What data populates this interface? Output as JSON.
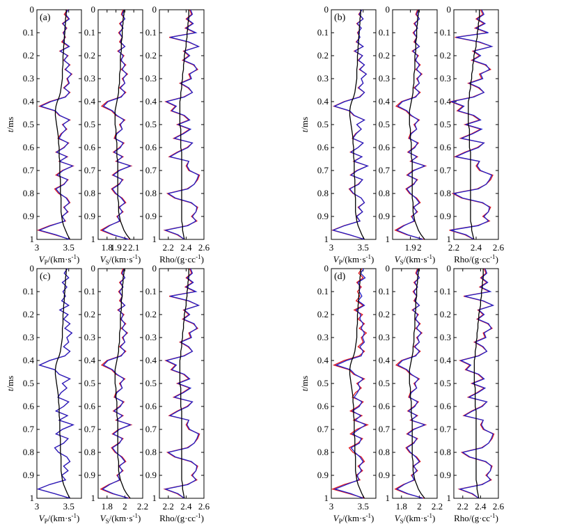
{
  "chart_data": {
    "type": "line",
    "series_colors": {
      "true": "#e0191e",
      "inverted": "#1f1fc8",
      "initial": "#000000"
    },
    "groups": [
      {
        "label": "(a)",
        "ylabel": [
          "t",
          "/ms"
        ],
        "panels": [
          {
            "key": "vp",
            "xlabel_main": "V",
            "xlabel_sub": "P",
            "xlabel_unit": "/(km·s",
            "xlabel_sup": "-1",
            "xlabel_close": ")",
            "xlim": [
              3.0,
              3.7
            ],
            "xticks": [
              3,
              3.5
            ],
            "xtick_labels": [
              "3",
              "3.5"
            ]
          },
          {
            "key": "vs",
            "xlabel_main": "V",
            "xlabel_sub": "S",
            "xlabel_unit": "/(km·s",
            "xlabel_sup": "-1",
            "xlabel_close": ")",
            "xlim": [
              1.7,
              2.2
            ],
            "xticks": [
              1.8,
              1.9,
              2.0,
              2.1
            ],
            "xtick_labels": [
              "1.8",
              "1.9",
              "2",
              "2.1"
            ]
          },
          {
            "key": "rho",
            "xlabel_main": "Rho/(g·cc",
            "xlabel_sub": "",
            "xlabel_unit": "",
            "xlabel_sup": "-1",
            "xlabel_close": ")",
            "xlim": [
              2.1,
              2.6
            ],
            "xticks": [
              2.2,
              2.4,
              2.6
            ],
            "xtick_labels": [
              "2.2",
              "2.4",
              "2.6"
            ]
          }
        ]
      },
      {
        "label": "(b)",
        "ylabel": [
          "t",
          "/ms"
        ],
        "panels": [
          {
            "key": "vp",
            "xlabel_main": "V",
            "xlabel_sub": "P",
            "xlabel_unit": "/(km·s",
            "xlabel_sup": "-1",
            "xlabel_close": ")",
            "xlim": [
              3.0,
              3.7
            ],
            "xticks": [
              3,
              3.5
            ],
            "xtick_labels": [
              "3",
              "3.5"
            ]
          },
          {
            "key": "vs",
            "xlabel_main": "V",
            "xlabel_sub": "S",
            "xlabel_unit": "/(km·s",
            "xlabel_sup": "-1",
            "xlabel_close": ")",
            "xlim": [
              1.7,
              2.2
            ],
            "xticks": [
              1.9,
              2.0
            ],
            "xtick_labels": [
              "1.9",
              "2"
            ]
          },
          {
            "key": "rho",
            "xlabel_main": "Rho/(g·cc",
            "xlabel_sub": "",
            "xlabel_unit": "",
            "xlabel_sup": "-1",
            "xlabel_close": ")",
            "xlim": [
              2.2,
              2.6
            ],
            "xticks": [
              2.2,
              2.4,
              2.6
            ],
            "xtick_labels": [
              "2.2",
              "2.4",
              "2.6"
            ]
          }
        ]
      },
      {
        "label": "(c)",
        "ylabel": [
          "t",
          "/ms"
        ],
        "panels": [
          {
            "key": "vp",
            "xlabel_main": "V",
            "xlabel_sub": "P",
            "xlabel_unit": "/(km·s",
            "xlabel_sup": "-1",
            "xlabel_close": ")",
            "xlim": [
              3.0,
              3.7
            ],
            "xticks": [
              3,
              3.5
            ],
            "xtick_labels": [
              "3",
              "3.5"
            ]
          },
          {
            "key": "vs",
            "xlabel_main": "V",
            "xlabel_sub": "S",
            "xlabel_unit": "/(km·s",
            "xlabel_sup": "-1",
            "xlabel_close": ")",
            "xlim": [
              1.7,
              2.2
            ],
            "xticks": [
              1.8,
              2.0,
              2.2
            ],
            "xtick_labels": [
              "1.8",
              "2",
              "2.2"
            ]
          },
          {
            "key": "rho",
            "xlabel_main": "Rho/(g·cc",
            "xlabel_sub": "",
            "xlabel_unit": "",
            "xlabel_sup": "-1",
            "xlabel_close": ")",
            "xlim": [
              2.1,
              2.6
            ],
            "xticks": [
              2.2,
              2.4,
              2.6
            ],
            "xtick_labels": [
              "2.2",
              "2.4",
              "2.6"
            ]
          }
        ]
      },
      {
        "label": "(d)",
        "ylabel": [
          "t",
          "/ms"
        ],
        "panels": [
          {
            "key": "vp",
            "xlabel_main": "V",
            "xlabel_sub": "P",
            "xlabel_unit": "/(km·s",
            "xlabel_sup": "-1",
            "xlabel_close": ")",
            "xlim": [
              3.0,
              3.7
            ],
            "xticks": [
              3,
              3.5
            ],
            "xtick_labels": [
              "3",
              "3.5"
            ]
          },
          {
            "key": "vs",
            "xlabel_main": "V",
            "xlabel_sub": "S",
            "xlabel_unit": "/(km·s",
            "xlabel_sup": "-1",
            "xlabel_close": ")",
            "xlim": [
              1.7,
              2.2
            ],
            "xticks": [
              1.8,
              2.0,
              2.2
            ],
            "xtick_labels": [
              "1.8",
              "2",
              "2.2"
            ]
          },
          {
            "key": "rho",
            "xlabel_main": "Rho/(g·cc",
            "xlabel_sub": "",
            "xlabel_unit": "",
            "xlabel_sup": "-1",
            "xlabel_close": ")",
            "xlim": [
              2.1,
              2.6
            ],
            "xticks": [
              2.2,
              2.4,
              2.6
            ],
            "xtick_labels": [
              "2.2",
              "2.4",
              "2.6"
            ]
          }
        ]
      }
    ],
    "ylim": [
      0,
      1
    ],
    "yticks": [
      0,
      0.1,
      0.2,
      0.3,
      0.4,
      0.5,
      0.6,
      0.7,
      0.8,
      0.9,
      1
    ],
    "ytick_labels": [
      "0",
      "0.1",
      "0.2",
      "0.3",
      "0.4",
      "0.5",
      "0.6",
      "0.7",
      "0.8",
      "0.9",
      "1"
    ],
    "curves": {
      "t": [
        0,
        0.02,
        0.04,
        0.06,
        0.08,
        0.1,
        0.12,
        0.14,
        0.16,
        0.18,
        0.2,
        0.22,
        0.24,
        0.26,
        0.28,
        0.3,
        0.32,
        0.34,
        0.36,
        0.38,
        0.4,
        0.42,
        0.44,
        0.46,
        0.48,
        0.5,
        0.52,
        0.54,
        0.56,
        0.58,
        0.6,
        0.62,
        0.64,
        0.66,
        0.68,
        0.7,
        0.72,
        0.74,
        0.76,
        0.78,
        0.8,
        0.82,
        0.84,
        0.86,
        0.88,
        0.9,
        0.92,
        0.94,
        0.96,
        0.98,
        1.0
      ],
      "vp": {
        "true": [
          3.48,
          3.43,
          3.5,
          3.4,
          3.47,
          3.41,
          3.45,
          3.39,
          3.5,
          3.36,
          3.49,
          3.42,
          3.52,
          3.44,
          3.55,
          3.47,
          3.5,
          3.42,
          3.52,
          3.44,
          3.2,
          3.04,
          3.28,
          3.35,
          3.52,
          3.4,
          3.47,
          3.38,
          3.33,
          3.5,
          3.42,
          3.3,
          3.48,
          3.35,
          3.57,
          3.4,
          3.3,
          3.49,
          3.42,
          3.28,
          3.34,
          3.47,
          3.52,
          3.42,
          3.49,
          3.39,
          3.45,
          3.2,
          3.02,
          3.28,
          3.52
        ],
        "inv_a": [
          3.49,
          3.45,
          3.51,
          3.41,
          3.46,
          3.42,
          3.44,
          3.41,
          3.51,
          3.37,
          3.48,
          3.43,
          3.51,
          3.45,
          3.54,
          3.48,
          3.51,
          3.43,
          3.51,
          3.45,
          3.22,
          3.06,
          3.29,
          3.36,
          3.51,
          3.41,
          3.46,
          3.39,
          3.35,
          3.49,
          3.43,
          3.31,
          3.47,
          3.36,
          3.56,
          3.41,
          3.32,
          3.48,
          3.43,
          3.3,
          3.36,
          3.46,
          3.51,
          3.43,
          3.48,
          3.4,
          3.44,
          3.22,
          3.04,
          3.3,
          3.51
        ],
        "inv_b": [
          3.48,
          3.44,
          3.5,
          3.41,
          3.47,
          3.42,
          3.45,
          3.4,
          3.5,
          3.37,
          3.49,
          3.43,
          3.52,
          3.45,
          3.55,
          3.47,
          3.5,
          3.43,
          3.52,
          3.45,
          3.21,
          3.05,
          3.29,
          3.36,
          3.52,
          3.4,
          3.47,
          3.39,
          3.34,
          3.5,
          3.42,
          3.31,
          3.48,
          3.36,
          3.57,
          3.41,
          3.31,
          3.49,
          3.43,
          3.29,
          3.35,
          3.47,
          3.52,
          3.43,
          3.49,
          3.4,
          3.45,
          3.21,
          3.03,
          3.29,
          3.52
        ],
        "inv_c": [
          3.48,
          3.43,
          3.5,
          3.4,
          3.47,
          3.41,
          3.45,
          3.39,
          3.5,
          3.36,
          3.49,
          3.42,
          3.52,
          3.44,
          3.55,
          3.47,
          3.5,
          3.42,
          3.52,
          3.44,
          3.2,
          3.04,
          3.28,
          3.35,
          3.52,
          3.4,
          3.47,
          3.38,
          3.33,
          3.5,
          3.42,
          3.3,
          3.48,
          3.35,
          3.57,
          3.4,
          3.3,
          3.49,
          3.42,
          3.28,
          3.34,
          3.47,
          3.52,
          3.42,
          3.49,
          3.39,
          3.45,
          3.2,
          3.02,
          3.28,
          3.52
        ],
        "inv_d": [
          3.51,
          3.46,
          3.53,
          3.42,
          3.45,
          3.44,
          3.48,
          3.42,
          3.52,
          3.39,
          3.46,
          3.45,
          3.5,
          3.47,
          3.52,
          3.49,
          3.52,
          3.45,
          3.5,
          3.47,
          3.24,
          3.08,
          3.3,
          3.37,
          3.5,
          3.42,
          3.45,
          3.41,
          3.36,
          3.48,
          3.44,
          3.33,
          3.46,
          3.38,
          3.54,
          3.43,
          3.33,
          3.47,
          3.44,
          3.31,
          3.37,
          3.45,
          3.5,
          3.44,
          3.47,
          3.41,
          3.43,
          3.24,
          3.06,
          3.31,
          3.5
        ],
        "init": [
          3.46,
          3.46,
          3.45,
          3.45,
          3.44,
          3.44,
          3.43,
          3.43,
          3.42,
          3.42,
          3.41,
          3.41,
          3.41,
          3.4,
          3.4,
          3.4,
          3.39,
          3.38,
          3.37,
          3.35,
          3.32,
          3.3,
          3.29,
          3.29,
          3.3,
          3.31,
          3.32,
          3.33,
          3.34,
          3.34,
          3.35,
          3.35,
          3.35,
          3.36,
          3.36,
          3.36,
          3.36,
          3.37,
          3.37,
          3.37,
          3.37,
          3.38,
          3.38,
          3.38,
          3.38,
          3.39,
          3.4,
          3.42,
          3.45,
          3.48,
          3.52
        ]
      },
      "vs": {
        "true": [
          1.98,
          1.96,
          2.0,
          1.94,
          1.98,
          1.93,
          1.97,
          1.94,
          2.0,
          1.92,
          1.99,
          1.95,
          2.01,
          1.96,
          2.03,
          1.97,
          2.0,
          1.94,
          2.01,
          1.95,
          1.8,
          1.74,
          1.85,
          1.9,
          2.0,
          1.94,
          1.97,
          1.9,
          1.88,
          1.99,
          1.94,
          1.87,
          1.98,
          1.9,
          2.07,
          1.93,
          1.86,
          1.98,
          1.93,
          1.85,
          1.89,
          1.97,
          2.01,
          1.93,
          1.98,
          1.91,
          1.95,
          1.82,
          1.73,
          1.86,
          2.05
        ],
        "inv": [
          1.99,
          1.97,
          2.0,
          1.95,
          1.98,
          1.94,
          1.97,
          1.95,
          2.0,
          1.93,
          1.98,
          1.96,
          2.0,
          1.97,
          2.02,
          1.98,
          2.0,
          1.95,
          2.0,
          1.96,
          1.81,
          1.76,
          1.86,
          1.91,
          1.99,
          1.95,
          1.97,
          1.91,
          1.89,
          1.98,
          1.95,
          1.88,
          1.97,
          1.91,
          2.06,
          1.94,
          1.87,
          1.97,
          1.94,
          1.86,
          1.9,
          1.96,
          2.0,
          1.94,
          1.97,
          1.92,
          1.94,
          1.83,
          1.75,
          1.87,
          2.04
        ],
        "init": [
          1.99,
          1.99,
          1.98,
          1.98,
          1.97,
          1.97,
          1.97,
          1.96,
          1.96,
          1.96,
          1.95,
          1.95,
          1.95,
          1.95,
          1.94,
          1.94,
          1.94,
          1.93,
          1.93,
          1.92,
          1.91,
          1.9,
          1.89,
          1.89,
          1.89,
          1.89,
          1.9,
          1.9,
          1.9,
          1.91,
          1.91,
          1.91,
          1.91,
          1.92,
          1.92,
          1.92,
          1.92,
          1.92,
          1.92,
          1.92,
          1.92,
          1.92,
          1.93,
          1.93,
          1.93,
          1.94,
          1.95,
          1.97,
          1.99,
          2.02,
          2.06
        ]
      },
      "rho": {
        "true": [
          2.44,
          2.46,
          2.4,
          2.47,
          2.39,
          2.5,
          2.21,
          2.42,
          2.54,
          2.37,
          2.43,
          2.36,
          2.48,
          2.53,
          2.43,
          2.45,
          2.33,
          2.42,
          2.47,
          2.37,
          2.17,
          2.28,
          2.23,
          2.37,
          2.43,
          2.3,
          2.44,
          2.36,
          2.26,
          2.47,
          2.41,
          2.3,
          2.21,
          2.43,
          2.4,
          2.43,
          2.55,
          2.53,
          2.49,
          2.41,
          2.19,
          2.27,
          2.45,
          2.53,
          2.51,
          2.46,
          2.52,
          2.41,
          2.16,
          2.3,
          2.38
        ],
        "inv": [
          2.45,
          2.47,
          2.41,
          2.48,
          2.4,
          2.51,
          2.22,
          2.43,
          2.54,
          2.38,
          2.44,
          2.37,
          2.49,
          2.52,
          2.44,
          2.46,
          2.34,
          2.43,
          2.47,
          2.38,
          2.18,
          2.29,
          2.24,
          2.38,
          2.44,
          2.31,
          2.45,
          2.37,
          2.27,
          2.47,
          2.42,
          2.31,
          2.22,
          2.43,
          2.41,
          2.44,
          2.54,
          2.52,
          2.49,
          2.42,
          2.2,
          2.28,
          2.46,
          2.52,
          2.51,
          2.47,
          2.51,
          2.42,
          2.17,
          2.31,
          2.38
        ],
        "init": [
          2.43,
          2.43,
          2.43,
          2.42,
          2.42,
          2.41,
          2.41,
          2.4,
          2.4,
          2.39,
          2.38,
          2.38,
          2.37,
          2.37,
          2.36,
          2.36,
          2.35,
          2.35,
          2.34,
          2.34,
          2.33,
          2.33,
          2.33,
          2.33,
          2.33,
          2.33,
          2.34,
          2.34,
          2.34,
          2.34,
          2.34,
          2.35,
          2.35,
          2.35,
          2.35,
          2.35,
          2.35,
          2.35,
          2.35,
          2.35,
          2.35,
          2.35,
          2.35,
          2.35,
          2.35,
          2.35,
          2.35,
          2.36,
          2.36,
          2.37,
          2.38
        ]
      }
    }
  }
}
